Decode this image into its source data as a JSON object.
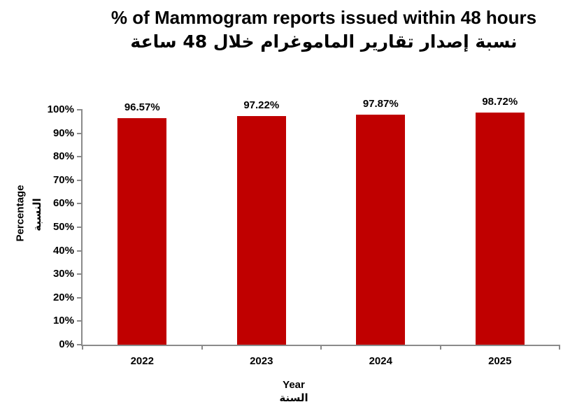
{
  "chart_data": {
    "type": "bar",
    "title": "% of Mammogram reports issued within 48 hours",
    "subtitle_ar": "نسبة إصدار تقارير الماموغرام خلال 48 ساعة",
    "categories": [
      "2022",
      "2023",
      "2024",
      "2025"
    ],
    "values": [
      96.57,
      97.22,
      97.87,
      98.72
    ],
    "value_labels": [
      "96.57%",
      "97.22%",
      "97.87%",
      "98.72%"
    ],
    "xlabel": "Year",
    "xlabel_ar": "السنة",
    "ylabel": "Percentage",
    "ylabel_ar": "النسبة",
    "ylim": [
      0,
      100
    ],
    "ytick_step": 10,
    "ytick_labels": [
      "0%",
      "10%",
      "20%",
      "30%",
      "40%",
      "50%",
      "60%",
      "70%",
      "80%",
      "90%",
      "100%"
    ],
    "legend_position": "none",
    "grid": false,
    "colors": {
      "bar": "#C00000",
      "axis": "#8A8A8A",
      "text": "#000000",
      "background": "#FFFFFF"
    }
  }
}
